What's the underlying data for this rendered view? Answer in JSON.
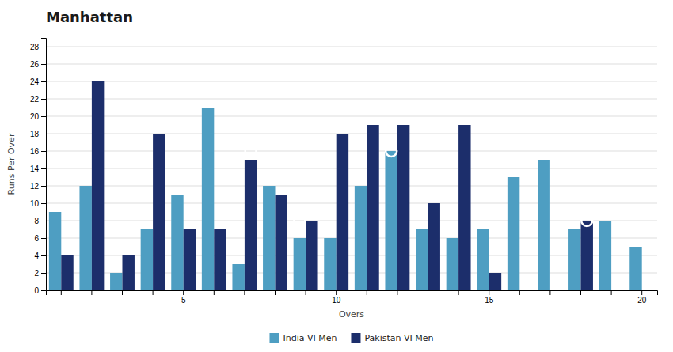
{
  "chart_data": {
    "type": "bar",
    "title": "Manhattan",
    "xlabel": "Overs",
    "ylabel": "Runs Per Over",
    "categories": [
      null,
      null,
      null,
      null,
      "5",
      null,
      null,
      null,
      null,
      "10",
      null,
      null,
      null,
      null,
      "15",
      null,
      null,
      null,
      null,
      "20"
    ],
    "series": [
      {
        "name": "India VI Men",
        "color": "#4e9ec2",
        "values": [
          9,
          12,
          2,
          7,
          11,
          21,
          3,
          12,
          6,
          6,
          12,
          16,
          7,
          6,
          7,
          13,
          15,
          7,
          8,
          5
        ],
        "circles": [
          null,
          null,
          null,
          null,
          null,
          null,
          null,
          null,
          8,
          null,
          null,
          16,
          null,
          null,
          null,
          null,
          null,
          null,
          null,
          null
        ]
      },
      {
        "name": "Pakistan VI Men",
        "color": "#1c2e6b",
        "values": [
          4,
          24,
          4,
          18,
          7,
          7,
          15,
          11,
          8,
          18,
          19,
          19,
          10,
          19,
          2,
          0,
          0,
          8,
          0,
          0
        ],
        "circles": [
          null,
          null,
          null,
          null,
          null,
          null,
          16,
          null,
          null,
          null,
          null,
          null,
          null,
          null,
          null,
          null,
          null,
          8,
          null,
          null
        ]
      }
    ],
    "ylim": [
      0,
      29
    ],
    "yticks": [
      0,
      2,
      4,
      6,
      8,
      10,
      12,
      14,
      16,
      18,
      20,
      22,
      24,
      26,
      28
    ],
    "grid": true,
    "legend": "bottom"
  }
}
